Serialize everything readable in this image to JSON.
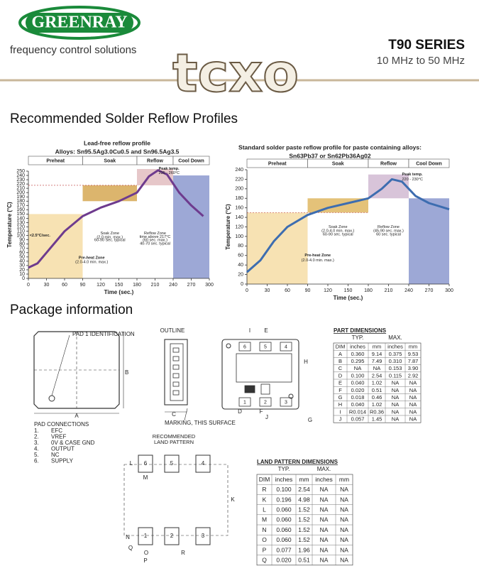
{
  "header": {
    "logo": "GREENRAY",
    "tagline": "frequency control solutions",
    "series": "T90 SERIES",
    "range": "10 MHz to 50 MHz",
    "product": "tcxo"
  },
  "sections": {
    "reflow": "Recommended Solder Reflow Profiles",
    "package": "Package information"
  },
  "reflow_left": {
    "title": [
      "Lead-free reflow profile",
      "Alloys: Sn95.5Ag3.0Cu0.5 and Sn96.5Ag3.5"
    ],
    "zones": [
      "Preheat",
      "Soak",
      "Reflow",
      "Cool Down"
    ],
    "xticks": [
      0,
      30,
      60,
      90,
      120,
      150,
      180,
      210,
      240,
      270,
      300
    ],
    "yticks": [
      0,
      10,
      20,
      30,
      40,
      50,
      60,
      70,
      80,
      90,
      100,
      110,
      120,
      130,
      140,
      150,
      160,
      170,
      180,
      190,
      200,
      210,
      220,
      230,
      240,
      250
    ],
    "xlabel": "Time (sec.)",
    "ylabel": "Temperature (°C)",
    "annotations": [
      "<2.5°C/sec.",
      "Soak Zone",
      "(2.0 min. max.)",
      "60-90 Sec. typical",
      "Reflow Zone",
      "time above 217°C",
      "(60 sec. max.)",
      "40-70 sec. typical",
      "Pre-heat Zone",
      "(2.0-4.0 min. max.)",
      "Peak temp.",
      "235 - 260°C"
    ]
  },
  "reflow_right": {
    "title": [
      "Standard solder paste reflow profile for paste containing alloys:",
      "Sn63Pb37 or Sn62Pb36Ag02"
    ],
    "zones": [
      "Preheat",
      "Soak",
      "Reflow",
      "Cool Down"
    ],
    "xticks": [
      0,
      30,
      60,
      90,
      120,
      150,
      180,
      210,
      240,
      270,
      300
    ],
    "yticks": [
      0,
      20,
      40,
      60,
      80,
      100,
      120,
      140,
      160,
      180,
      200,
      220,
      240
    ],
    "xlabel": "Time (sec.)",
    "ylabel": "Temperature (°C)",
    "annotations": [
      "Soak Zone",
      "(2.0-4.0 min. max.)",
      "60-90 sec. typical",
      "Reflow Zone",
      "(45-90 sec. max.)",
      "60 sec. typical",
      "Pre-heat Zone",
      "(2.0-4.0 min. max.)",
      "Peak temp.",
      "220 - 230°C"
    ]
  },
  "package": {
    "pad1": "PAD 1 IDENTIFICATION",
    "outline": "OUTLINE",
    "marking": "MARKING, THIS SURFACE",
    "dims_top": [
      "A",
      "B"
    ],
    "dim_c": "C",
    "bottom_letters": [
      "I",
      "E",
      "H",
      "D",
      "J",
      "F",
      "G"
    ],
    "bottom_pads": [
      "1",
      "2",
      "3",
      "4",
      "5",
      "6"
    ],
    "pad_connections_title": "PAD CONNECTIONS",
    "pad_connections": [
      {
        "num": "1.",
        "name": "EFC"
      },
      {
        "num": "2.",
        "name": "VREF"
      },
      {
        "num": "3.",
        "name": "0V & CASE GND"
      },
      {
        "num": "4.",
        "name": "OUTPUT"
      },
      {
        "num": "5.",
        "name": "NC"
      },
      {
        "num": "6.",
        "name": "SUPPLY"
      }
    ],
    "land_title": [
      "RECOMMENDED",
      "LAND PATTERN"
    ],
    "land_pads": [
      "6",
      "5",
      "4",
      "1",
      "2",
      "3"
    ],
    "land_letters": [
      "L",
      "M",
      "K",
      "N",
      "O",
      "P",
      "Q",
      "R"
    ]
  },
  "part_dimensions": {
    "title": "PART DIMENSIONS",
    "groups": [
      "TYP.",
      "MAX."
    ],
    "columns": [
      "DIM",
      "inches",
      "mm",
      "inches",
      "mm"
    ],
    "rows": [
      [
        "A",
        "0.360",
        "9.14",
        "0.375",
        "9.53"
      ],
      [
        "B",
        "0.295",
        "7.49",
        "0.310",
        "7.87"
      ],
      [
        "C",
        "NA",
        "NA",
        "0.153",
        "3.90"
      ],
      [
        "D",
        "0.100",
        "2.54",
        "0.115",
        "2.92"
      ],
      [
        "E",
        "0.040",
        "1.02",
        "NA",
        "NA"
      ],
      [
        "F",
        "0.020",
        "0.51",
        "NA",
        "NA"
      ],
      [
        "G",
        "0.018",
        "0.46",
        "NA",
        "NA"
      ],
      [
        "H",
        "0.040",
        "1.02",
        "NA",
        "NA"
      ],
      [
        "I",
        "R0.014",
        "R0.36",
        "NA",
        "NA"
      ],
      [
        "J",
        "0.057",
        "1.45",
        "NA",
        "NA"
      ]
    ]
  },
  "land_pattern": {
    "title": "LAND PATTERN DIMENSIONS",
    "groups": [
      "TYP.",
      "MAX."
    ],
    "columns": [
      "DIM",
      "inches",
      "mm",
      "inches",
      "mm"
    ],
    "rows": [
      [
        "R",
        "0.100",
        "2.54",
        "NA",
        "NA"
      ],
      [
        "K",
        "0.196",
        "4.98",
        "NA",
        "NA"
      ],
      [
        "L",
        "0.060",
        "1.52",
        "NA",
        "NA"
      ],
      [
        "M",
        "0.060",
        "1.52",
        "NA",
        "NA"
      ],
      [
        "N",
        "0.060",
        "1.52",
        "NA",
        "NA"
      ],
      [
        "O",
        "0.060",
        "1.52",
        "NA",
        "NA"
      ],
      [
        "P",
        "0.077",
        "1.96",
        "NA",
        "NA"
      ],
      [
        "Q",
        "0.020",
        "0.51",
        "NA",
        "NA"
      ]
    ]
  }
}
